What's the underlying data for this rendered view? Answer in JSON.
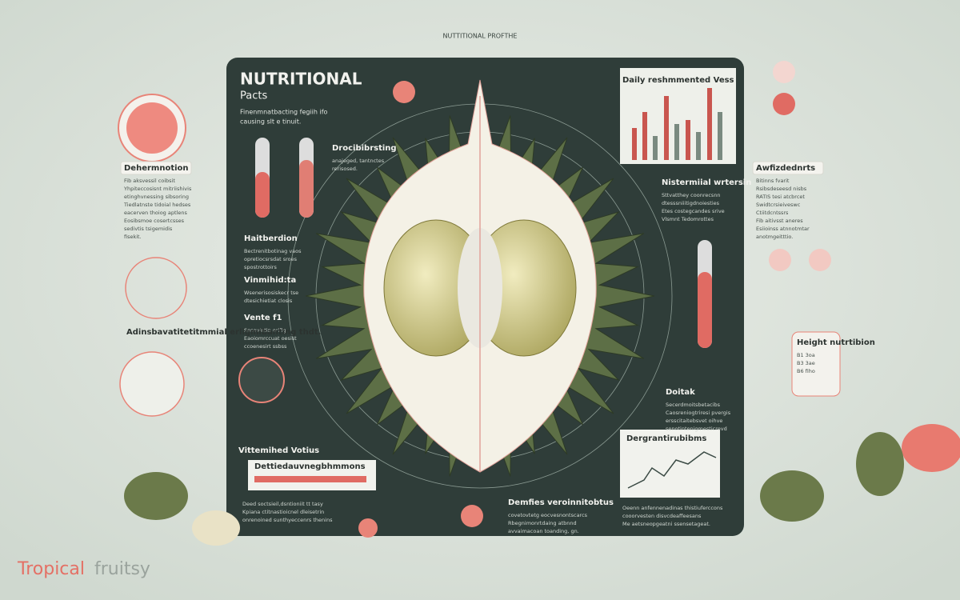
{
  "header": {
    "label": "NUTTITIONAL PROFTHE",
    "title": "NUTRITIONAL",
    "title2": "Pacts",
    "subtitle": [
      "Finenmnatbacting fegiih ifo",
      "causing slt e tinuit."
    ]
  },
  "sections": [
    {
      "heading": "Dehermnotion",
      "lines": [
        "Fib aksvessil coibsit",
        "Yhpiteccosisnt mitriishivis",
        "etinghvnessing sibsoring",
        "Tiedlatnste tidoial hedses",
        "eacerven thoiog aptlens",
        "Eosibsmoe cosertcsses",
        "sedivtis tsigemidis",
        "fisekit."
      ]
    },
    {
      "heading": "Haitberdion",
      "lines": [
        "Bectrenitbotinag vaos",
        "opretiocsrsdat sroes",
        "spostrottoirs"
      ]
    },
    {
      "heading": "Vinmihid:ta",
      "lines": [
        "Wsenerisosiskecr tse",
        "dtesichietiat closis"
      ]
    },
    {
      "heading": "Vente f1",
      "lines": [
        "Sesovintip orifig",
        "Eaoiomrccuat oesist",
        "ccoenesirt ssbss"
      ]
    },
    {
      "heading": "Adinsbavatitetitmmial erligmibanting thdt.",
      "lines": []
    },
    {
      "heading": "Drocibibrsting",
      "lines": [
        "anajeged, tantnctes",
        "rerisosed."
      ]
    },
    {
      "heading": "Daily reshmmented Vess",
      "lines": []
    },
    {
      "heading": "Nistermiial wrtersin",
      "lines": [
        "Sttvatthey coonrecsnn",
        "dtesssniiitigdnoiesties",
        "Etes costegcandes srive",
        "Vlsmnt Tedomrottes"
      ]
    },
    {
      "heading": "Awfizdednrts",
      "lines": [
        "Bitinns fvarit",
        "Rsibsdeseesd nisbs",
        "RATIS tesi atcbrcet",
        "Swidtcrsieiveswc",
        "Ctiitdcntssrs",
        "Fib aitivsst aneres",
        "Esiioinss atnnotmtar",
        "anotmgeitttio."
      ]
    },
    {
      "heading": "Height nutrtibion",
      "lines": [
        "B1  3oa",
        "B3  3ae",
        "B6  fiho"
      ]
    },
    {
      "heading": "Doitak",
      "lines": [
        "Secerdmoitsbetacibs",
        "Caosreniogtriresi pvergis",
        "ersscitaitebsvet oihve",
        "senotintenigmesticrevd"
      ]
    },
    {
      "heading": "Dergrantirubibms",
      "lines": []
    },
    {
      "heading": "Vittemihed Votius",
      "lines": []
    },
    {
      "heading": "Dettiedauvnegbhmmons",
      "lines": []
    },
    {
      "heading": "Demfies veroinnitobtus",
      "lines": [
        "covetovtetg eocvesnontscarcs",
        "Rbegnimonrtdaing atbnnd",
        "avvaimacoan toanding, gn."
      ]
    },
    {
      "heading": "",
      "lines": [
        "Oeenn anfennenadinas thistiuferccons",
        "cooorvesten disvcdeaffeesans",
        "Me aetsneopgeatni ssensetageat."
      ]
    },
    {
      "heading": "",
      "lines": [
        "Deed soctsieil,dsntioniit tt tasy",
        "Kpiana ctitnastioicnel dleisetrin",
        "onrenoined sunthyeccenrs thenins"
      ]
    }
  ],
  "logo": {
    "part1": "Tropical",
    "part2": "fruitsy"
  }
}
